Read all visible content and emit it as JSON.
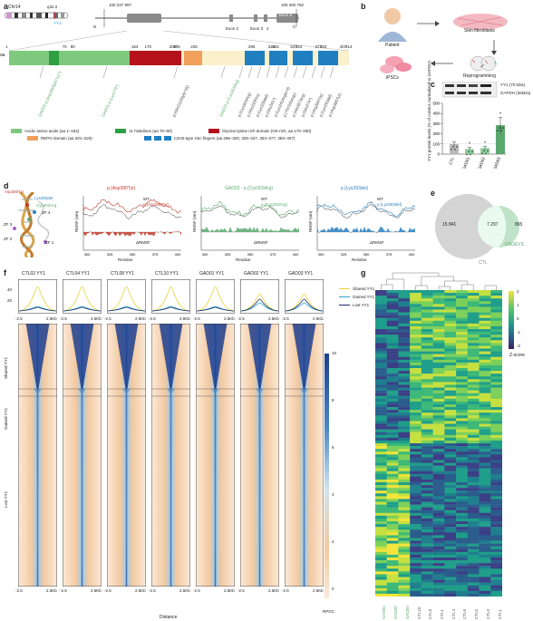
{
  "panel_a": {
    "letter": "a",
    "chrom": "Chr14",
    "band": "q32.2",
    "gene": "YY1",
    "coord_start": "100 237 997",
    "coord_end": "100 282 792",
    "strand_n": "N",
    "strand_c": "C",
    "exons": [
      "Exon 1",
      "Exon 2",
      "Exon 3",
      "4",
      "Exon 5"
    ],
    "aa_label": "aa",
    "positions": [
      "1",
      "70",
      "80",
      "154",
      "170",
      "200",
      "205",
      "226",
      "296",
      "320",
      "325",
      "347",
      "353",
      "377",
      "383",
      "407",
      "414"
    ],
    "variants": [
      {
        "text": "GAD02 p.(Asp38Glyfs*127)",
        "color": "#5aa86e"
      },
      {
        "text": "GAD01 p.(Lys179*)",
        "color": "#5aa86e"
      },
      {
        "text": "p.(Gln211Glyfs*25)",
        "color": "#444"
      },
      {
        "text": "GAD03 p.(Cys303Arg)",
        "color": "#5aa86e"
      },
      {
        "text": "p.(Cys303Arg)",
        "color": "#444"
      },
      {
        "text": "p.(His310Pro)",
        "color": "#444"
      },
      {
        "text": "p.(Lys339del)",
        "color": "#444"
      },
      {
        "text": "p.(Glu341*)",
        "color": "#444"
      },
      {
        "text": "p.(Lys342Argfs*4)",
        "color": "#444"
      },
      {
        "text": "p.(Thr343Asp)",
        "color": "#444"
      },
      {
        "text": "p.(His357Arg)",
        "color": "#444"
      },
      {
        "text": "p.(Gln374*)",
        "color": "#444"
      },
      {
        "text": "p.(Arg384Trp)",
        "color": "#444"
      },
      {
        "text": "p.(Lys393del)",
        "color": "#444"
      },
      {
        "text": "p.(Asp380Tyr)",
        "color": "#444"
      }
    ],
    "legend": [
      {
        "label": "Acidic amino acids (aa 1–154)",
        "color": "#7fc97f"
      },
      {
        "label": "11 histidines (aa 70–80)",
        "color": "#2ea043"
      },
      {
        "label": "Glycine-lysine rich domain (GK-rich, aa 170–200)",
        "color": "#b5121b"
      },
      {
        "label": "REPO domain (aa 201–226)",
        "color": "#f0a05a"
      },
      {
        "label": "C2H2-type zinc fingers (aa 296–320, 325–347, 353–377, 383–407)",
        "color": "#1f7fc0"
      }
    ]
  },
  "panel_b": {
    "letter": "b",
    "patient": "Patient",
    "fibroblasts": "Skin fibroblasts",
    "ipscs": "iPSCs",
    "reprogramming": "Reprogramming"
  },
  "panel_c": {
    "letter": "c",
    "blot_yy1": "YY1 (70 kDa)",
    "blot_gapdh": "GAPDH (36kDa)",
    "ylabel": "YY1 protein levels (% of control, normalized to GAPDH)",
    "asterisk": "*",
    "chart_data": {
      "type": "bar",
      "categories": [
        "CTL",
        "GAD01",
        "GAD02",
        "GAD03"
      ],
      "values": [
        100,
        50,
        60,
        285
      ],
      "errors": [
        20,
        15,
        15,
        75
      ],
      "ylim": [
        0,
        500
      ],
      "yticks": [
        0,
        100,
        200,
        300,
        400,
        500
      ],
      "colors": [
        "#b8b8b8",
        "#8fcf9a",
        "#8fcf9a",
        "#5aa86e"
      ]
    }
  },
  "panel_d": {
    "letter": "d",
    "mutations": [
      {
        "text": "Asp380Tyr",
        "color": "#c0392b"
      },
      {
        "text": "Lys393del",
        "color": "#2a7fc0"
      },
      {
        "text": "Cys303Arg",
        "color": "#5aa86e"
      }
    ],
    "zf_labels": [
      "ZF 4",
      "ZF 3",
      "ZF 2",
      "ZF 1"
    ],
    "plots": [
      {
        "title": "p.(Asp380Tyr)",
        "color": "#c0392b",
        "wt": "WT",
        "mut": "p.(Asp380Tyr)",
        "dlabel": "ΔRMSF",
        "ylabel": "RMSF (nm)",
        "xlabel": "Residue",
        "xticks": [
          "300",
          "325",
          "350",
          "375",
          "400"
        ]
      },
      {
        "title": "GAD03 - p.(Cys303Arg)",
        "color": "#5aa86e",
        "wt": "WT",
        "mut": "p.(Cys303Arg)",
        "dlabel": "ΔRMSF",
        "ylabel": "RMSF (nm)",
        "xlabel": "Residue",
        "xticks": [
          "300",
          "325",
          "350",
          "375",
          "400"
        ]
      },
      {
        "title": "p.(Lys393del)",
        "color": "#2a7fc0",
        "wt": "WT",
        "mut": "p.(Lys393del)",
        "dlabel": "ΔRMSF",
        "ylabel": "RMSF (nm)",
        "xlabel": "Residue",
        "xticks": [
          "300",
          "325",
          "350",
          "375",
          "400"
        ]
      }
    ]
  },
  "panel_e": {
    "letter": "e",
    "ctl_count": "15 841",
    "overlap_count": "7 297",
    "gadevs_count": "865",
    "ctl_label": "CTL",
    "gadevs_label": "GADEVS"
  },
  "panel_f": {
    "letter": "f",
    "samples": [
      "CTL02 YY1",
      "CTL04 YY1",
      "CTL08 YY1",
      "CTL10 YY1",
      "GAD01 YY1",
      "GAD02 YY1",
      "GAD03 YY1"
    ],
    "legend": [
      {
        "label": "Shared YY1",
        "color": "#e8d23a"
      },
      {
        "label": "Gained YY1",
        "color": "#2aa7c9"
      },
      {
        "label": "Lost YY1",
        "color": "#1b2a6b"
      }
    ],
    "y_ticks": [
      "20",
      "40"
    ],
    "x_left": "-2.5",
    "x_right": "2.5Kb",
    "row_labels": [
      "Shared YY1",
      "Gained YY1",
      "Lost YY1"
    ],
    "colorbar_ticks": [
      "10",
      "8",
      "6",
      "4",
      "2",
      "0"
    ],
    "colorbar_unit": "RPGC",
    "xlabel": "Distance"
  },
  "panel_g": {
    "letter": "g",
    "colorbar_ticks": [
      "2",
      "1",
      "0",
      "-1",
      "-2"
    ],
    "colorbar_unit": "Z-score",
    "columns": [
      {
        "label": "GAD01",
        "color": "#5aa86e"
      },
      {
        "label": "GAD02",
        "color": "#5aa86e"
      },
      {
        "label": "GAD03",
        "color": "#5aa86e"
      },
      {
        "label": "CTL10",
        "color": "#555"
      },
      {
        "label": "CTL8",
        "color": "#555"
      },
      {
        "label": "CTL1",
        "color": "#555"
      },
      {
        "label": "CTL4",
        "color": "#555"
      },
      {
        "label": "CTL6",
        "color": "#555"
      },
      {
        "label": "CTL5",
        "color": "#555"
      },
      {
        "label": "CTL3",
        "color": "#555"
      },
      {
        "label": "CTL1",
        "color": "#555"
      }
    ]
  }
}
